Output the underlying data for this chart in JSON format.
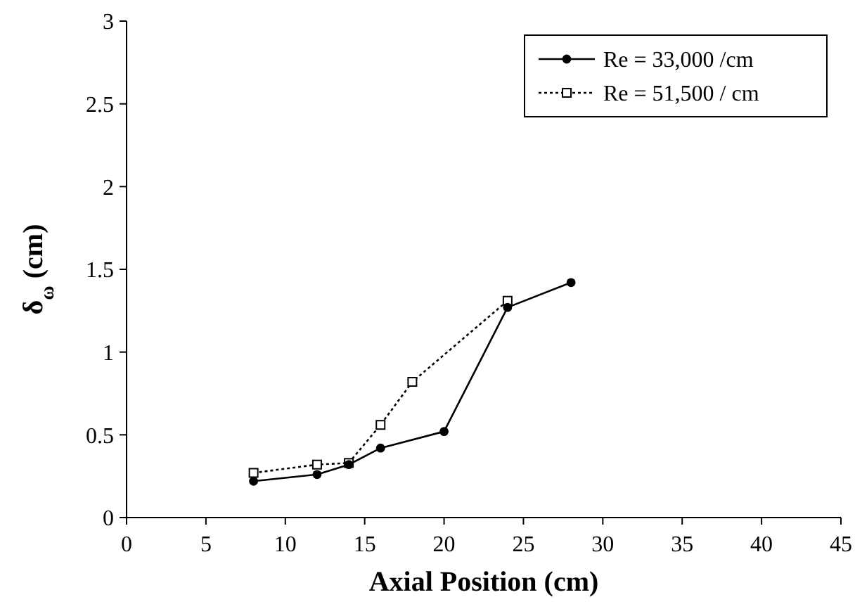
{
  "chart_data": {
    "type": "line",
    "xlabel": "Axial Position (cm)",
    "ylabel": "δ$_{ω}$ (cm)",
    "xlim": [
      0,
      45
    ],
    "xticks": [
      0,
      5,
      10,
      15,
      20,
      25,
      30,
      35,
      40,
      45
    ],
    "ylim": [
      0,
      3
    ],
    "yticks": [
      0,
      0.5,
      1,
      1.5,
      2,
      2.5,
      3
    ],
    "grid": false,
    "legend": "top right",
    "series": [
      {
        "name": "Re = 33,000 /cm",
        "color": "#000000",
        "x": [
          8,
          12,
          14,
          16,
          20,
          24,
          28
        ],
        "values": [
          0.22,
          0.26,
          0.32,
          0.42,
          0.52,
          1.27,
          1.42
        ],
        "marker": "circle",
        "line_style": "solid"
      },
      {
        "name": "Re = 51,500 / cm",
        "color": "#000000",
        "x": [
          8,
          12,
          14,
          16,
          18,
          24
        ],
        "values": [
          0.27,
          0.32,
          0.33,
          0.56,
          0.82,
          1.31
        ],
        "marker": "square",
        "line_style": "dotted"
      }
    ]
  }
}
